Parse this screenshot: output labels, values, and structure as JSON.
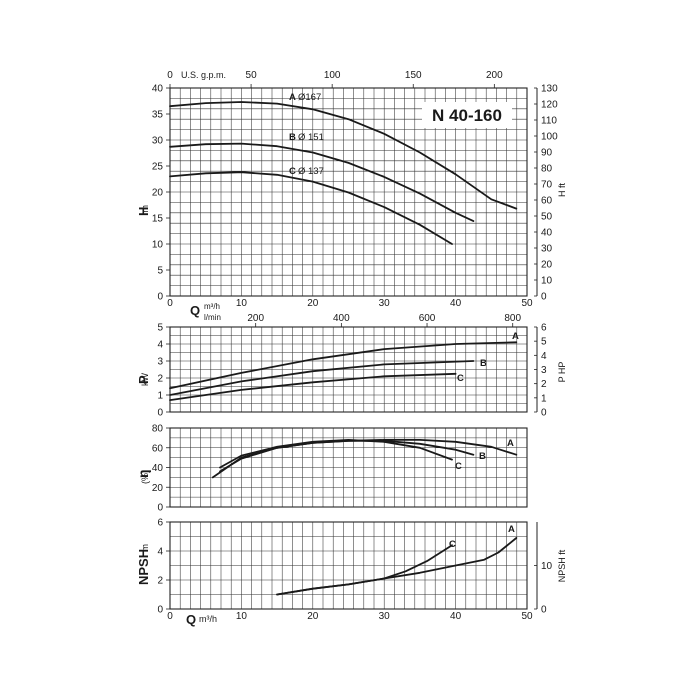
{
  "title": "N 40-160",
  "colors": {
    "grid": "#333333",
    "curve": "#1a1a1a",
    "frame": "#222222"
  },
  "top_axis": {
    "unit_label": "U.S. g.p.m.",
    "ticks": [
      0,
      50,
      100,
      150,
      200
    ]
  },
  "mid_axis": {
    "unit_label": "l/min",
    "ticks": [
      0,
      200,
      400,
      600,
      800
    ]
  },
  "flow_axis": {
    "label": "Q",
    "unit": "m³/h",
    "unit_short": "m³/h",
    "ticks": [
      0,
      10,
      20,
      30,
      40,
      50
    ]
  },
  "chart_data": [
    {
      "type": "line",
      "name": "head",
      "ylabel": "H",
      "yunit": "m",
      "y2label": "H ft",
      "xlim": [
        0,
        50
      ],
      "ylim": [
        0,
        40
      ],
      "y2lim": [
        0,
        130
      ],
      "yticks": [
        0,
        5,
        10,
        15,
        20,
        25,
        30,
        35,
        40
      ],
      "y2ticks": [
        0,
        10,
        20,
        30,
        40,
        50,
        60,
        70,
        80,
        90,
        100,
        110,
        120,
        130
      ],
      "grid": true,
      "series": [
        {
          "name": "A",
          "label": "Ø167",
          "x": [
            0,
            5,
            10,
            15,
            20,
            25,
            30,
            35,
            40,
            45,
            48.5
          ],
          "y": [
            36.5,
            37.1,
            37.3,
            37.0,
            35.9,
            34.0,
            31.2,
            27.6,
            23.4,
            18.6,
            16.8
          ]
        },
        {
          "name": "B",
          "label": "Ø 151",
          "x": [
            0,
            5,
            10,
            15,
            20,
            25,
            30,
            35,
            40,
            42.5
          ],
          "y": [
            28.7,
            29.2,
            29.3,
            28.8,
            27.6,
            25.6,
            22.9,
            19.7,
            16.0,
            14.4
          ]
        },
        {
          "name": "C",
          "label": "Ø 137",
          "x": [
            0,
            5,
            10,
            15,
            20,
            25,
            30,
            35,
            39.5
          ],
          "y": [
            23.0,
            23.6,
            23.8,
            23.3,
            22.0,
            19.9,
            17.1,
            13.7,
            10.0
          ]
        }
      ]
    },
    {
      "type": "line",
      "name": "power",
      "ylabel": "P",
      "yunit": "kW",
      "y2label": "P HP",
      "xlim": [
        0,
        50
      ],
      "ylim": [
        0,
        5
      ],
      "y2lim": [
        0,
        6
      ],
      "yticks": [
        0,
        1,
        2,
        3,
        4,
        5
      ],
      "y2ticks": [
        0,
        1,
        2,
        3,
        4,
        5,
        6
      ],
      "grid": true,
      "series": [
        {
          "name": "A",
          "x": [
            0,
            10,
            20,
            30,
            40,
            48.5
          ],
          "y": [
            1.4,
            2.3,
            3.1,
            3.7,
            4.0,
            4.1
          ]
        },
        {
          "name": "B",
          "x": [
            0,
            10,
            20,
            30,
            42.5
          ],
          "y": [
            1.0,
            1.8,
            2.4,
            2.8,
            3.0
          ]
        },
        {
          "name": "C",
          "x": [
            0,
            10,
            20,
            30,
            40
          ],
          "y": [
            0.7,
            1.3,
            1.75,
            2.1,
            2.25
          ]
        }
      ]
    },
    {
      "type": "line",
      "name": "efficiency",
      "ylabel": "η",
      "yunit": "(%)",
      "xlim": [
        0,
        50
      ],
      "ylim": [
        0,
        80
      ],
      "yticks": [
        0,
        20,
        40,
        60,
        80
      ],
      "grid": true,
      "series": [
        {
          "name": "A",
          "x": [
            6,
            10,
            15,
            20,
            25,
            30,
            35,
            40,
            45,
            48.5
          ],
          "y": [
            30,
            50,
            60,
            65,
            67,
            68,
            68,
            66,
            61,
            53
          ]
        },
        {
          "name": "B",
          "x": [
            7,
            10,
            15,
            20,
            25,
            30,
            35,
            40,
            42.5
          ],
          "y": [
            36,
            49,
            60,
            65,
            67,
            67,
            64,
            58,
            53
          ]
        },
        {
          "name": "C",
          "x": [
            7,
            10,
            15,
            20,
            25,
            30,
            35,
            39.5
          ],
          "y": [
            40,
            52,
            61,
            66,
            68,
            66,
            60,
            48
          ]
        }
      ]
    },
    {
      "type": "line",
      "name": "npsh",
      "ylabel": "NPSH",
      "yunit": "m",
      "y2label": "NPSH ft",
      "xlim": [
        0,
        50
      ],
      "ylim": [
        0,
        6
      ],
      "y2lim": [
        0,
        20
      ],
      "yticks": [
        0,
        2,
        4,
        6
      ],
      "y2ticks": [
        0,
        10
      ],
      "grid": true,
      "series": [
        {
          "name": "A",
          "x": [
            15,
            20,
            25,
            30,
            35,
            40,
            44,
            46,
            48.5
          ],
          "y": [
            1.0,
            1.4,
            1.7,
            2.1,
            2.5,
            3.0,
            3.4,
            3.9,
            4.9
          ]
        },
        {
          "name": "C",
          "x": [
            15,
            20,
            25,
            30,
            33,
            36,
            39.5
          ],
          "y": [
            1.0,
            1.4,
            1.7,
            2.1,
            2.6,
            3.3,
            4.4
          ]
        }
      ]
    }
  ]
}
